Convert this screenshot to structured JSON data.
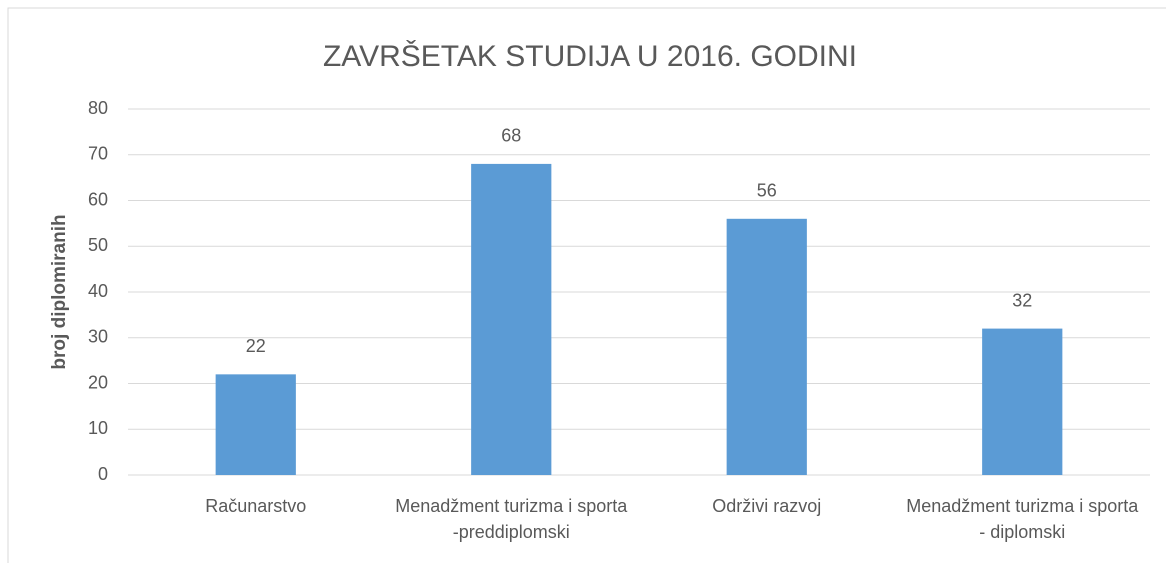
{
  "chart_data": {
    "type": "bar",
    "title": "ZAVRŠETAK STUDIJA U 2016. GODINI",
    "y_label": "broj diplomiranih",
    "categories": [
      "Računarstvo",
      "Menadžment turizma i sporta  -preddiplomski",
      "Održivi razvoj",
      "Menadžment turizma i sporta - diplomski"
    ],
    "values": [
      22,
      68,
      56,
      32
    ],
    "color": "#5b9bd5",
    "ylim": [
      0,
      80
    ],
    "yticks": [
      0,
      10,
      20,
      30,
      40,
      50,
      60,
      70,
      80
    ],
    "grid": true
  }
}
